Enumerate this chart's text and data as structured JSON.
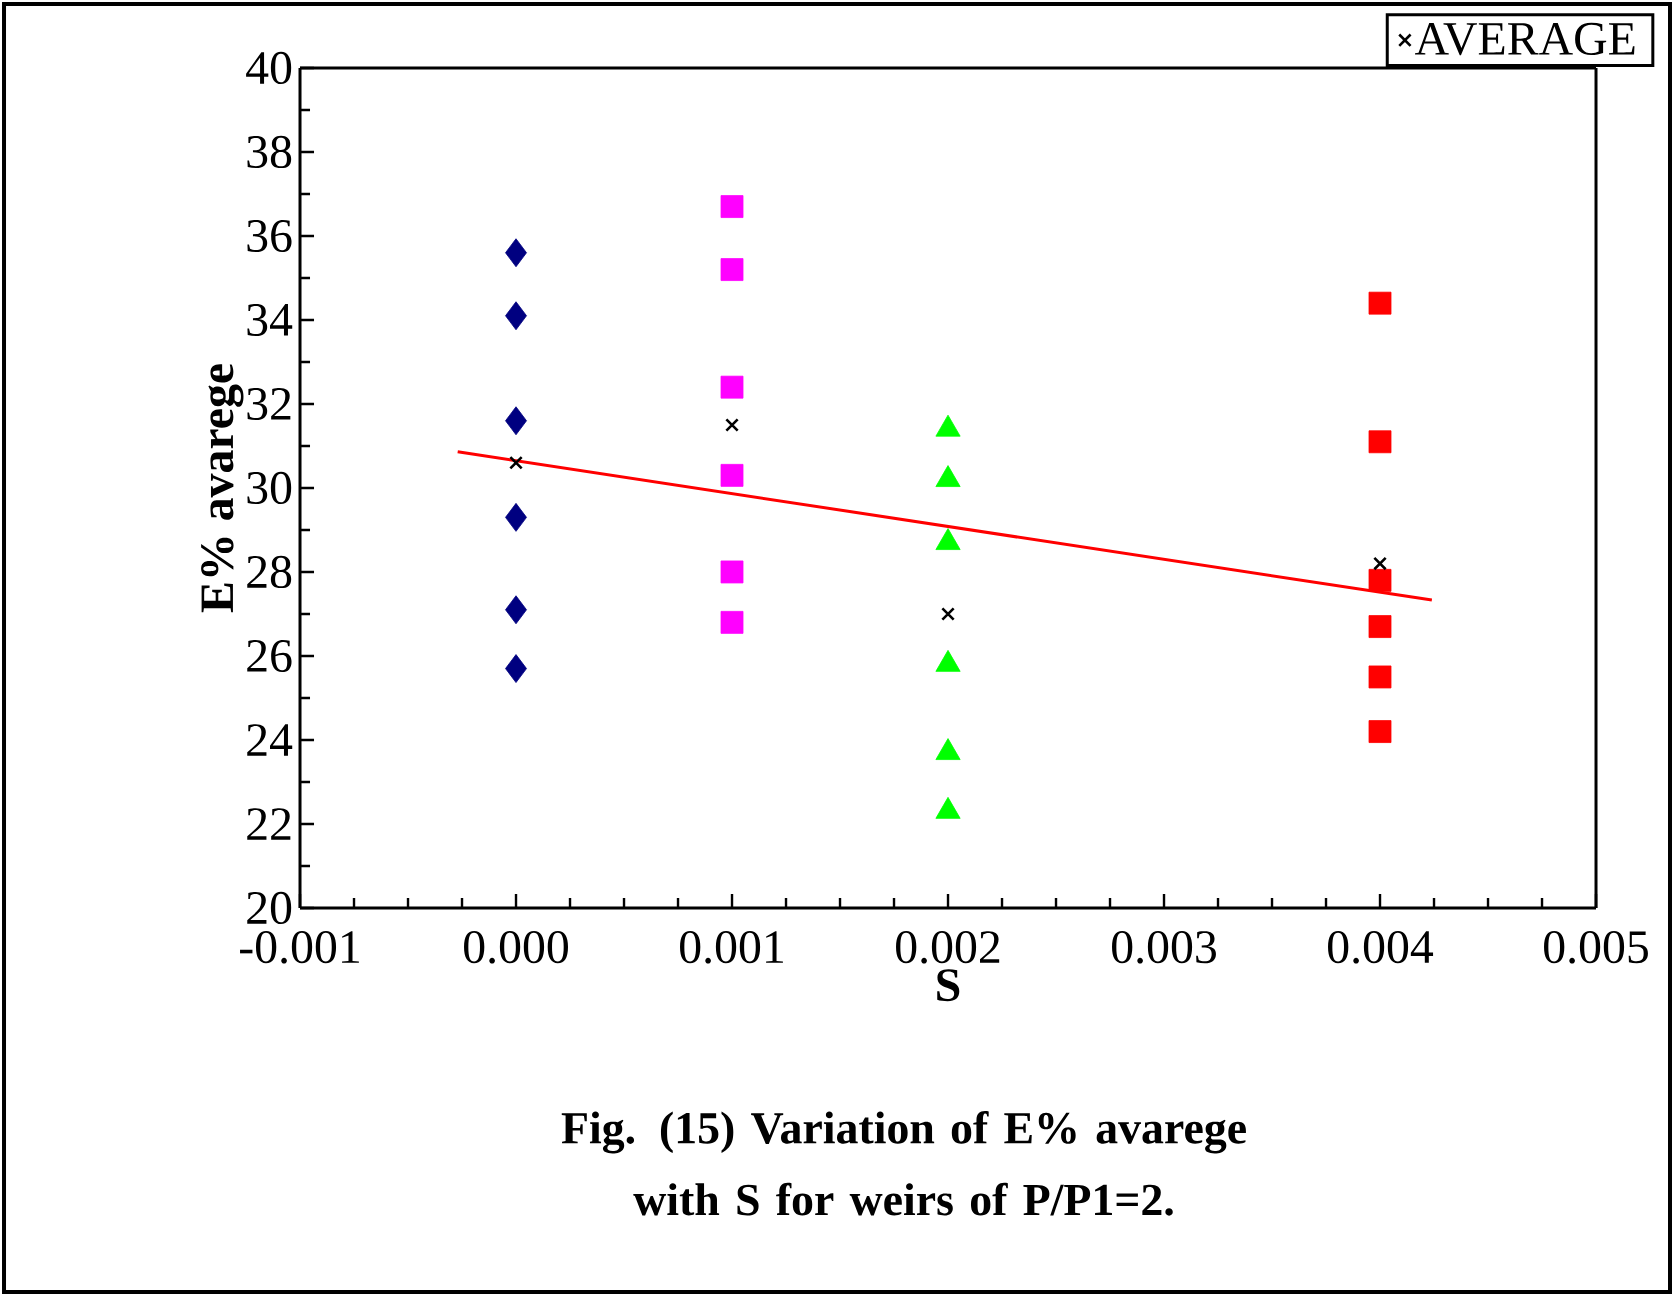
{
  "chart_data": {
    "type": "scatter",
    "title": "Fig. (15) Variation of E% avarege with S for weirs of P/P1=2.",
    "xlabel": "S",
    "ylabel": "E% avarege",
    "xlim": [
      -0.001,
      0.005
    ],
    "xticks": [
      {
        "value": -0.001,
        "label": "-0.001"
      },
      {
        "value": 0,
        "label": "0.000"
      },
      {
        "value": 0.001,
        "label": "0.001"
      },
      {
        "value": 0.002,
        "label": "0.002"
      },
      {
        "value": 0.003,
        "label": "0.003"
      },
      {
        "value": 0.004,
        "label": "0.004"
      },
      {
        "value": 0.005,
        "label": "0.005"
      }
    ],
    "ylim": [
      20,
      40
    ],
    "yticks": [
      20,
      22,
      24,
      26,
      28,
      30,
      32,
      34,
      36,
      38,
      40
    ],
    "legend": "top right",
    "grid": false,
    "series": [
      {
        "marker": "diamond",
        "color": "#000080",
        "x": [
          0,
          0,
          0,
          0,
          0,
          0
        ],
        "values": [
          35.6,
          34.1,
          31.6,
          29.3,
          27.1,
          25.7
        ]
      },
      {
        "marker": "square",
        "color": "#ff00ff",
        "x": [
          0.001,
          0.001,
          0.001,
          0.001,
          0.001,
          0.001
        ],
        "values": [
          36.7,
          35.2,
          32.4,
          30.3,
          28.0,
          26.8
        ]
      },
      {
        "marker": "triangle",
        "color": "#00ff00",
        "x": [
          0.002,
          0.002,
          0.002,
          0.002,
          0.002,
          0.002
        ],
        "values": [
          31.4,
          30.2,
          28.7,
          25.8,
          23.7,
          22.3
        ]
      },
      {
        "marker": "square",
        "color": "#ff0000",
        "x": [
          0.004,
          0.004,
          0.004,
          0.004,
          0.004,
          0.004
        ],
        "values": [
          34.4,
          31.1,
          27.8,
          26.7,
          25.5,
          24.2
        ]
      },
      {
        "name": "AVERAGE",
        "marker": "cross",
        "color": "#000000",
        "x": [
          0,
          0.001,
          0.002,
          0.004
        ],
        "values": [
          30.6,
          31.5,
          27.0,
          28.2
        ]
      },
      {
        "type": "line",
        "marker": "none",
        "color": "#ff0000",
        "x": [
          -0.00027,
          0.00424
        ],
        "values": [
          30.86,
          27.33
        ]
      }
    ]
  }
}
